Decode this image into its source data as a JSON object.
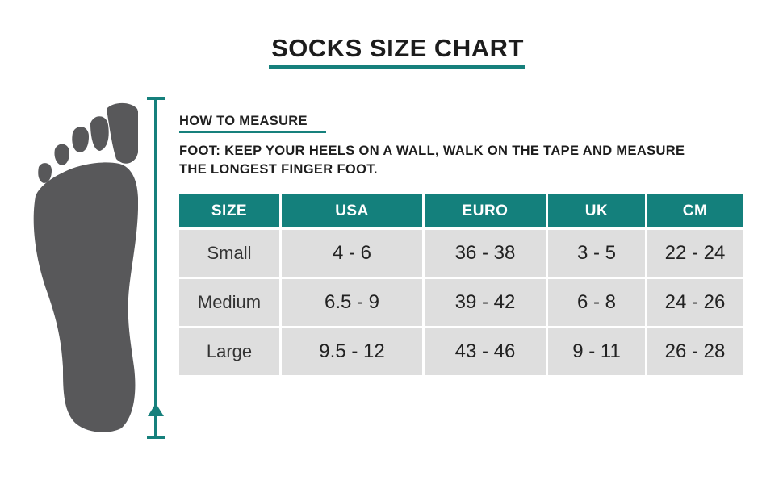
{
  "title": "SOCKS SIZE CHART",
  "how_to_measure": {
    "heading": "HOW TO MEASURE",
    "line1": "FOOT: KEEP YOUR HEELS ON A WALL, WALK ON THE TAPE AND MEASURE",
    "line2": "THE LONGEST FINGER FOOT."
  },
  "table": {
    "headers": [
      "SIZE",
      "USA",
      "EURO",
      "UK",
      "CM"
    ],
    "rows": [
      [
        "Small",
        "4 - 6",
        "36 - 38",
        "3 - 5",
        "22 - 24"
      ],
      [
        "Medium",
        "6.5 - 9",
        "39 - 42",
        "6 - 8",
        "24 - 26"
      ],
      [
        "Large",
        "9.5 - 12",
        "43 - 46",
        "9 - 11",
        "26 - 28"
      ]
    ]
  },
  "colors": {
    "accent": "#16807c",
    "cell_background": "#dedede",
    "foot": "#58585a"
  },
  "icons": {
    "foot": "foot-silhouette-icon",
    "ruler": "measuring-ruler-icon"
  }
}
